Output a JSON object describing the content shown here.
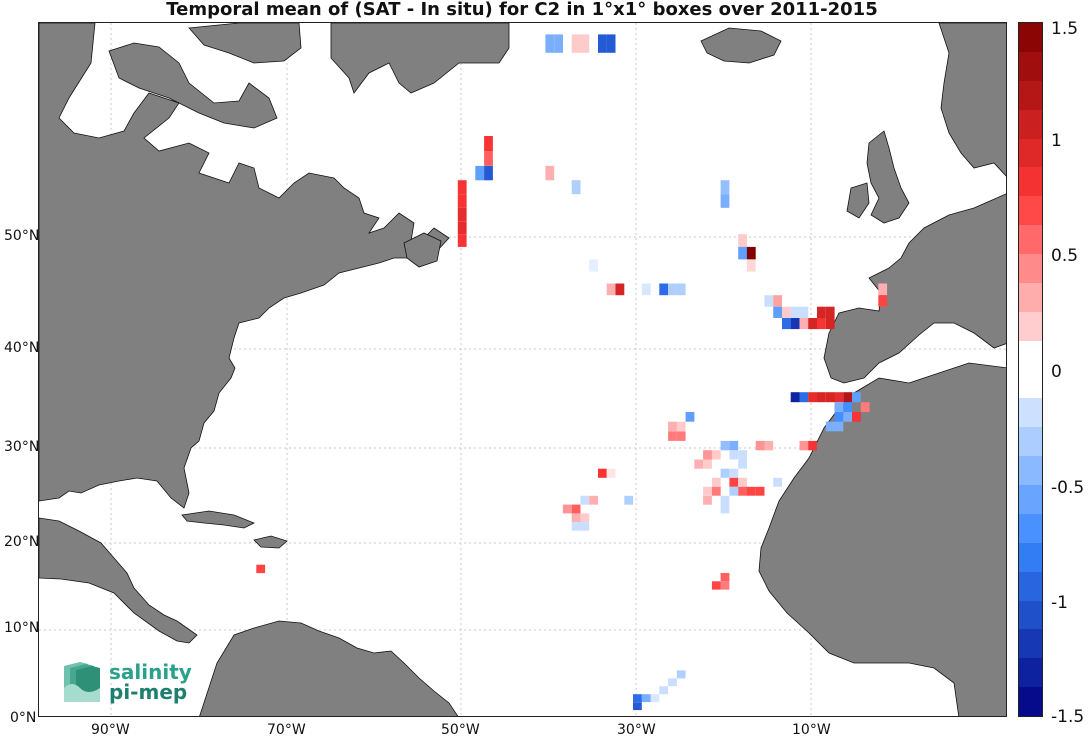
{
  "title": "Temporal mean of (SAT - In situ) for C2 in 1°x1° boxes over 2011-2015",
  "map": {
    "lat_ticks": [
      "0°N",
      "10°N",
      "20°N",
      "30°N",
      "40°N",
      "50°N"
    ],
    "lon_ticks": [
      "90°W",
      "70°W",
      "50°W",
      "30°W",
      "10°W"
    ],
    "land_color": "#808080",
    "grid": true
  },
  "colorbar": {
    "range": [
      -1.5,
      1.5
    ],
    "labels": [
      "1.5",
      "1",
      "0.5",
      "0",
      "-0.5",
      "-1",
      "-1.5"
    ],
    "cmap_top": "#800000",
    "cmap_mid": "#ffffff",
    "cmap_bottom": "#000080"
  },
  "boxes": [
    {
      "lon": -40,
      "lat": 64,
      "v": -0.5
    },
    {
      "lon": -39,
      "lat": 64,
      "v": -0.5
    },
    {
      "lon": -37,
      "lat": 64,
      "v": 0.2
    },
    {
      "lon": -36,
      "lat": 64,
      "v": 0.2
    },
    {
      "lon": -34,
      "lat": 64,
      "v": -1.0
    },
    {
      "lon": -33,
      "lat": 64,
      "v": -1.0
    },
    {
      "lon": -47,
      "lat": 58,
      "v": 0.8
    },
    {
      "lon": -47,
      "lat": 57,
      "v": 0.6
    },
    {
      "lon": -48,
      "lat": 56,
      "v": -0.6
    },
    {
      "lon": -47,
      "lat": 56,
      "v": -1.0
    },
    {
      "lon": -40,
      "lat": 56,
      "v": 0.3
    },
    {
      "lon": -37,
      "lat": 55,
      "v": -0.3
    },
    {
      "lon": -50,
      "lat": 55,
      "v": 0.8
    },
    {
      "lon": -50,
      "lat": 54,
      "v": 0.8
    },
    {
      "lon": -50,
      "lat": 53,
      "v": 0.9
    },
    {
      "lon": -50,
      "lat": 52,
      "v": 0.9
    },
    {
      "lon": -50,
      "lat": 51,
      "v": 0.8
    },
    {
      "lon": -20,
      "lat": 55,
      "v": -0.4
    },
    {
      "lon": -20,
      "lat": 54,
      "v": -0.5
    },
    {
      "lon": -18,
      "lat": 51,
      "v": 0.2
    },
    {
      "lon": -18,
      "lat": 50,
      "v": -0.6
    },
    {
      "lon": -17,
      "lat": 50,
      "v": 1.5
    },
    {
      "lon": -17,
      "lat": 49,
      "v": 0.15
    },
    {
      "lon": -35,
      "lat": 49,
      "v": -0.1
    },
    {
      "lon": -33,
      "lat": 47,
      "v": 0.3
    },
    {
      "lon": -32,
      "lat": 47,
      "v": 1.0
    },
    {
      "lon": -29,
      "lat": 47,
      "v": -0.15
    },
    {
      "lon": -27,
      "lat": 47,
      "v": -0.9
    },
    {
      "lon": -26,
      "lat": 47,
      "v": -0.3
    },
    {
      "lon": -25,
      "lat": 47,
      "v": -0.3
    },
    {
      "lon": -15,
      "lat": 46,
      "v": -0.2
    },
    {
      "lon": -14,
      "lat": 46,
      "v": 0.35
    },
    {
      "lon": -14,
      "lat": 45,
      "v": -0.6
    },
    {
      "lon": -13,
      "lat": 45,
      "v": 0.2
    },
    {
      "lon": -12,
      "lat": 45,
      "v": -0.2
    },
    {
      "lon": -11,
      "lat": 45,
      "v": -0.2
    },
    {
      "lon": -9,
      "lat": 45,
      "v": 1.0
    },
    {
      "lon": -8,
      "lat": 45,
      "v": 1.0
    },
    {
      "lon": -13,
      "lat": 44,
      "v": -0.9
    },
    {
      "lon": -12,
      "lat": 44,
      "v": -1.2
    },
    {
      "lon": -11,
      "lat": 44,
      "v": 0.3
    },
    {
      "lon": -10,
      "lat": 44,
      "v": 1.0
    },
    {
      "lon": -9,
      "lat": 44,
      "v": 0.8
    },
    {
      "lon": -8,
      "lat": 44,
      "v": 1.0
    },
    {
      "lon": -2,
      "lat": 47,
      "v": 0.3
    },
    {
      "lon": -2,
      "lat": 46,
      "v": 0.7
    },
    {
      "lon": -12,
      "lat": 37,
      "v": -1.3
    },
    {
      "lon": -11,
      "lat": 37,
      "v": -0.9
    },
    {
      "lon": -10,
      "lat": 37,
      "v": 0.9
    },
    {
      "lon": -9,
      "lat": 37,
      "v": 1.0
    },
    {
      "lon": -8,
      "lat": 37,
      "v": 1.0
    },
    {
      "lon": -7,
      "lat": 37,
      "v": 0.9
    },
    {
      "lon": -6,
      "lat": 37,
      "v": 1.2
    },
    {
      "lon": -5,
      "lat": 37,
      "v": -0.6
    },
    {
      "lon": -7,
      "lat": 36,
      "v": -0.5
    },
    {
      "lon": -6,
      "lat": 36,
      "v": -0.7
    },
    {
      "lon": -4,
      "lat": 36,
      "v": 0.5
    },
    {
      "lon": -7,
      "lat": 35,
      "v": -0.7
    },
    {
      "lon": -6,
      "lat": 35,
      "v": -0.5
    },
    {
      "lon": -5,
      "lat": 35,
      "v": 0.8
    },
    {
      "lon": -8,
      "lat": 34,
      "v": -0.5
    },
    {
      "lon": -7,
      "lat": 34,
      "v": -0.5
    },
    {
      "lon": -24,
      "lat": 35,
      "v": -0.6
    },
    {
      "lon": -25,
      "lat": 34,
      "v": 0.2
    },
    {
      "lon": -26,
      "lat": 34,
      "v": 0.3
    },
    {
      "lon": -25,
      "lat": 33,
      "v": 0.5
    },
    {
      "lon": -26,
      "lat": 33,
      "v": 0.5
    },
    {
      "lon": -20,
      "lat": 32,
      "v": -0.4
    },
    {
      "lon": -19,
      "lat": 32,
      "v": -0.5
    },
    {
      "lon": -16,
      "lat": 32,
      "v": 0.4
    },
    {
      "lon": -15,
      "lat": 32,
      "v": 0.3
    },
    {
      "lon": -11,
      "lat": 32,
      "v": 0.4
    },
    {
      "lon": -10,
      "lat": 32,
      "v": 0.8
    },
    {
      "lon": -21,
      "lat": 31,
      "v": 0.2
    },
    {
      "lon": -22,
      "lat": 31,
      "v": 0.4
    },
    {
      "lon": -19,
      "lat": 31,
      "v": -0.2
    },
    {
      "lon": -18,
      "lat": 31,
      "v": -0.2
    },
    {
      "lon": -23,
      "lat": 30,
      "v": 0.3
    },
    {
      "lon": -22,
      "lat": 30,
      "v": 0.2
    },
    {
      "lon": -18,
      "lat": 30,
      "v": -0.2
    },
    {
      "lon": -34,
      "lat": 29,
      "v": 0.8
    },
    {
      "lon": -33,
      "lat": 29,
      "v": 0.1
    },
    {
      "lon": -20,
      "lat": 29,
      "v": -0.3
    },
    {
      "lon": -19,
      "lat": 29,
      "v": -0.2
    },
    {
      "lon": -21,
      "lat": 28,
      "v": 0.2
    },
    {
      "lon": -19,
      "lat": 28,
      "v": 0.7
    },
    {
      "lon": -18,
      "lat": 28,
      "v": 0.2
    },
    {
      "lon": -14,
      "lat": 28,
      "v": -0.2
    },
    {
      "lon": -22,
      "lat": 27,
      "v": 0.2
    },
    {
      "lon": -21,
      "lat": 27,
      "v": 0.5
    },
    {
      "lon": -19,
      "lat": 27,
      "v": -0.3
    },
    {
      "lon": -18,
      "lat": 27,
      "v": 0.6
    },
    {
      "lon": -17,
      "lat": 27,
      "v": 0.7
    },
    {
      "lon": -16,
      "lat": 27,
      "v": 0.7
    },
    {
      "lon": -22,
      "lat": 26,
      "v": 0.3
    },
    {
      "lon": -20,
      "lat": 26,
      "v": -0.2
    },
    {
      "lon": -20,
      "lat": 25,
      "v": -0.2
    },
    {
      "lon": -36,
      "lat": 26,
      "v": -0.2
    },
    {
      "lon": -35,
      "lat": 26,
      "v": 0.3
    },
    {
      "lon": -31,
      "lat": 26,
      "v": -0.3
    },
    {
      "lon": -38,
      "lat": 25,
      "v": 0.4
    },
    {
      "lon": -37,
      "lat": 25,
      "v": 0.6
    },
    {
      "lon": -37,
      "lat": 24,
      "v": 0.3
    },
    {
      "lon": -36,
      "lat": 24,
      "v": 0.2
    },
    {
      "lon": -37,
      "lat": 23,
      "v": -0.2
    },
    {
      "lon": -36,
      "lat": 23,
      "v": -0.2
    },
    {
      "lon": -20,
      "lat": 17,
      "v": 0.6
    },
    {
      "lon": -21,
      "lat": 16,
      "v": 0.7
    },
    {
      "lon": -20,
      "lat": 16,
      "v": 0.5
    },
    {
      "lon": -73,
      "lat": 18,
      "v": 0.7
    },
    {
      "lon": -25,
      "lat": 5,
      "v": -0.3
    },
    {
      "lon": -26,
      "lat": 4,
      "v": -0.2
    },
    {
      "lon": -27,
      "lat": 3,
      "v": -0.2
    },
    {
      "lon": -28,
      "lat": 2,
      "v": -0.15
    },
    {
      "lon": -29,
      "lat": 2,
      "v": -0.5
    },
    {
      "lon": -30,
      "lat": 1,
      "v": -1.0
    },
    {
      "lon": -30,
      "lat": 2,
      "v": -0.9
    }
  ],
  "logo": {
    "line1": "salinity",
    "line2": "pi-mep"
  }
}
